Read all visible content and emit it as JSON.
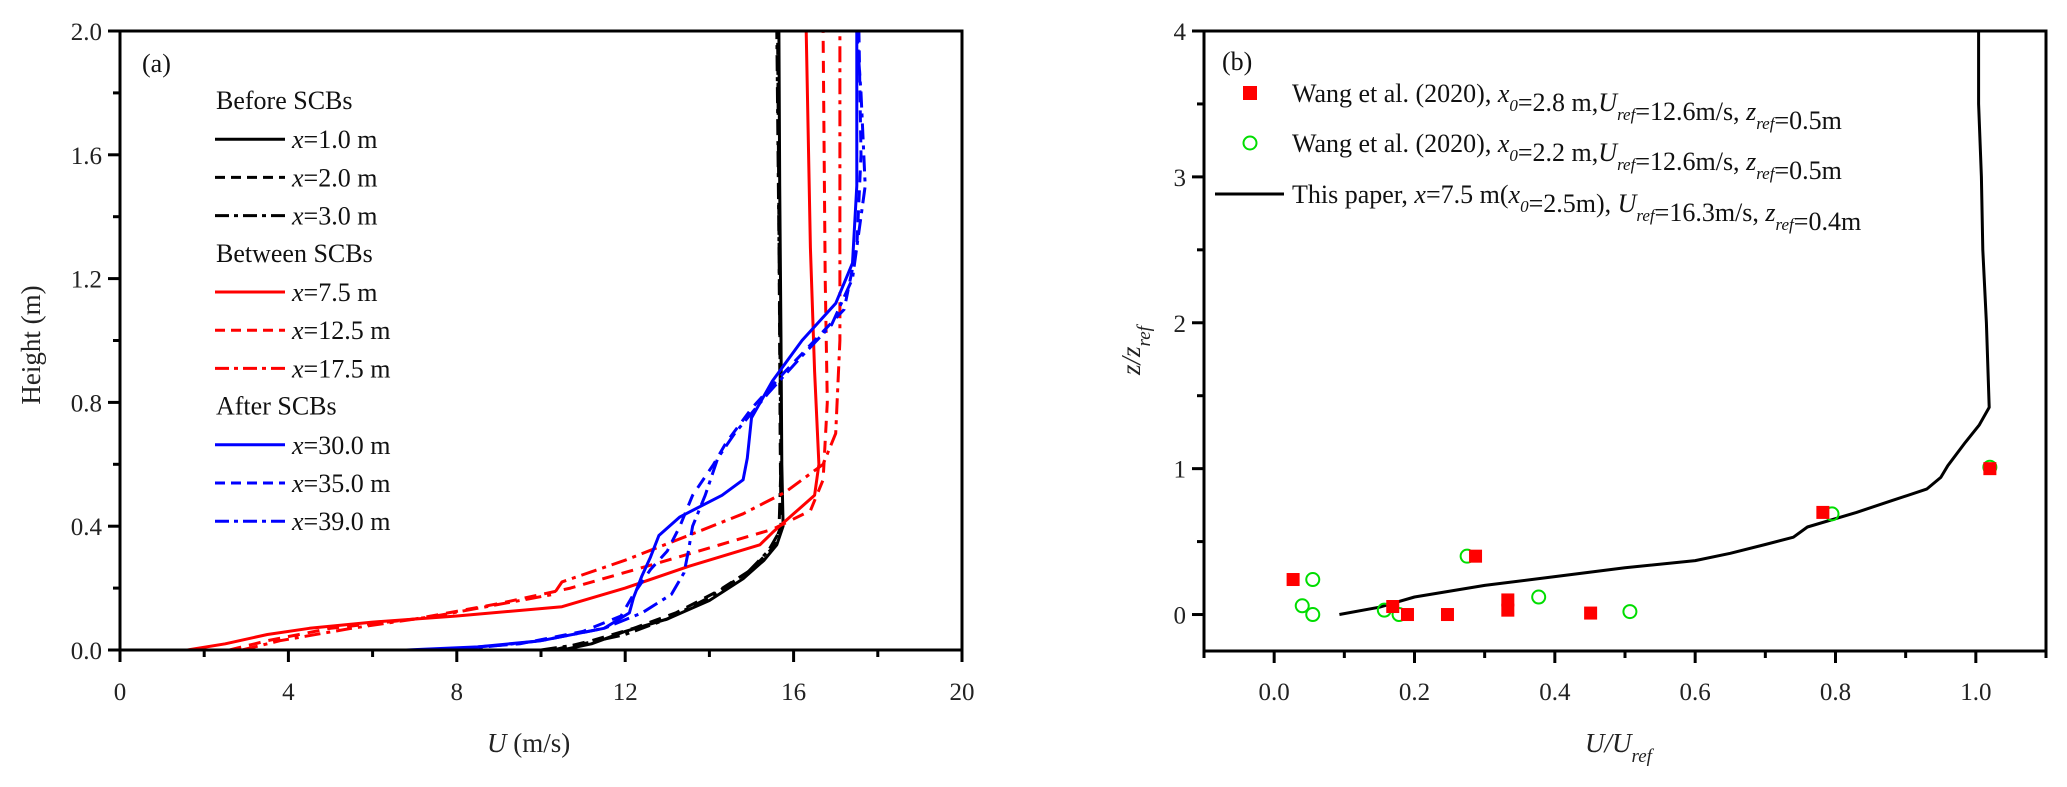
{
  "chart_data": [
    {
      "type": "line",
      "panel_label": "(a)",
      "xlabel_main": "U",
      "xlabel_unit": " (m/s)",
      "ylabel": "Height (m)",
      "xlim": [
        0,
        20
      ],
      "ylim": [
        0,
        2.0
      ],
      "xticks": [
        0,
        4,
        8,
        12,
        16,
        20
      ],
      "xtick_labels": [
        "0",
        "4",
        "8",
        "12",
        "16",
        "20"
      ],
      "yticks": [
        0,
        0.4,
        0.8,
        1.2,
        1.6,
        2.0
      ],
      "ytick_labels": [
        "0.0",
        "0.4",
        "0.8",
        "1.2",
        "1.6",
        "2.0"
      ],
      "grid": false,
      "legend_position": "top-left",
      "legend_groups": [
        {
          "title": "Before SCBs",
          "series": [
            0,
            1,
            2
          ]
        },
        {
          "title": "Between SCBs",
          "series": [
            3,
            4,
            5
          ]
        },
        {
          "title": "After SCBs",
          "series": [
            6,
            7,
            8
          ]
        }
      ],
      "series": [
        {
          "name": "x=1.0 m",
          "var": "x",
          "rest": "=1.0 m",
          "color": "#000000",
          "dash": "solid",
          "points": [
            [
              10.5,
              0
            ],
            [
              11.2,
              0.02
            ],
            [
              12.0,
              0.06
            ],
            [
              13.0,
              0.1
            ],
            [
              14.0,
              0.16
            ],
            [
              14.8,
              0.23
            ],
            [
              15.3,
              0.29
            ],
            [
              15.6,
              0.34
            ],
            [
              15.75,
              0.4
            ],
            [
              15.72,
              0.6
            ],
            [
              15.7,
              1.0
            ],
            [
              15.67,
              1.5
            ],
            [
              15.65,
              2.0
            ]
          ]
        },
        {
          "name": "x=2.0 m",
          "var": "x",
          "rest": "=2.0 m",
          "color": "#000000",
          "dash": "dash",
          "points": [
            [
              10.3,
              0
            ],
            [
              11.2,
              0.03
            ],
            [
              12.2,
              0.07
            ],
            [
              13.2,
              0.12
            ],
            [
              14.2,
              0.19
            ],
            [
              15.0,
              0.26
            ],
            [
              15.5,
              0.33
            ],
            [
              15.7,
              0.4
            ],
            [
              15.68,
              0.7
            ],
            [
              15.66,
              1.2
            ],
            [
              15.62,
              2.0
            ]
          ]
        },
        {
          "name": "x=3.0 m",
          "var": "x",
          "rest": "=3.0 m",
          "color": "#000000",
          "dash": "dashdot",
          "points": [
            [
              10.0,
              0
            ],
            [
              11.0,
              0.02
            ],
            [
              12.0,
              0.05
            ],
            [
              13.0,
              0.1
            ],
            [
              14.0,
              0.17
            ],
            [
              14.9,
              0.25
            ],
            [
              15.4,
              0.32
            ],
            [
              15.65,
              0.38
            ],
            [
              15.7,
              0.6
            ],
            [
              15.66,
              1.2
            ],
            [
              15.6,
              2.0
            ]
          ]
        },
        {
          "name": "x=7.5 m",
          "var": "x",
          "rest": "=7.5 m",
          "color": "#ff0000",
          "dash": "solid",
          "points": [
            [
              1.6,
              0
            ],
            [
              2.5,
              0.02
            ],
            [
              3.5,
              0.05
            ],
            [
              4.5,
              0.07
            ],
            [
              6.0,
              0.09
            ],
            [
              8.0,
              0.11
            ],
            [
              10.5,
              0.14
            ],
            [
              12.0,
              0.2
            ],
            [
              13.5,
              0.27
            ],
            [
              15.2,
              0.34
            ],
            [
              15.5,
              0.38
            ],
            [
              16.0,
              0.44
            ],
            [
              16.5,
              0.5
            ],
            [
              16.6,
              0.6
            ],
            [
              16.5,
              0.9
            ],
            [
              16.4,
              1.3
            ],
            [
              16.3,
              2.0
            ]
          ]
        },
        {
          "name": "x=12.5 m",
          "var": "x",
          "rest": "=12.5 m",
          "color": "#ff0000",
          "dash": "dash",
          "points": [
            [
              2.6,
              0
            ],
            [
              3.5,
              0.03
            ],
            [
              5.0,
              0.07
            ],
            [
              7.0,
              0.1
            ],
            [
              9.0,
              0.15
            ],
            [
              10.7,
              0.2
            ],
            [
              12.5,
              0.27
            ],
            [
              14.0,
              0.33
            ],
            [
              15.5,
              0.39
            ],
            [
              16.4,
              0.45
            ],
            [
              16.7,
              0.55
            ],
            [
              16.8,
              0.8
            ],
            [
              16.75,
              1.2
            ],
            [
              16.7,
              2.0
            ]
          ]
        },
        {
          "name": "x=17.5 m",
          "var": "x",
          "rest": "=17.5 m",
          "color": "#ff0000",
          "dash": "dashdot",
          "points": [
            [
              2.9,
              0
            ],
            [
              3.8,
              0.03
            ],
            [
              5.5,
              0.07
            ],
            [
              7.5,
              0.11
            ],
            [
              9.5,
              0.16
            ],
            [
              10.3,
              0.18
            ],
            [
              10.5,
              0.22
            ],
            [
              12.0,
              0.29
            ],
            [
              13.5,
              0.37
            ],
            [
              14.8,
              0.44
            ],
            [
              15.8,
              0.51
            ],
            [
              16.7,
              0.6
            ],
            [
              17.0,
              0.7
            ],
            [
              17.1,
              1.0
            ],
            [
              17.1,
              1.4
            ],
            [
              17.1,
              2.0
            ]
          ]
        },
        {
          "name": "x=30.0 m",
          "var": "x",
          "rest": "=30.0 m",
          "color": "#0000ff",
          "dash": "solid",
          "points": [
            [
              6.8,
              0
            ],
            [
              8.5,
              0.01
            ],
            [
              10.0,
              0.03
            ],
            [
              11.5,
              0.07
            ],
            [
              12.1,
              0.12
            ],
            [
              12.2,
              0.17
            ],
            [
              12.4,
              0.24
            ],
            [
              12.6,
              0.3
            ],
            [
              12.8,
              0.37
            ],
            [
              13.3,
              0.43
            ],
            [
              14.3,
              0.5
            ],
            [
              14.8,
              0.55
            ],
            [
              14.9,
              0.62
            ],
            [
              15.0,
              0.75
            ],
            [
              15.5,
              0.87
            ],
            [
              16.2,
              1.0
            ],
            [
              17.0,
              1.12
            ],
            [
              17.4,
              1.25
            ],
            [
              17.5,
              1.5
            ],
            [
              17.5,
              2.0
            ]
          ]
        },
        {
          "name": "x=35.0 m",
          "var": "x",
          "rest": "=35.0 m",
          "color": "#0000ff",
          "dash": "dash",
          "points": [
            [
              7.5,
              0
            ],
            [
              9.5,
              0.02
            ],
            [
              11.0,
              0.06
            ],
            [
              11.9,
              0.11
            ],
            [
              12.2,
              0.18
            ],
            [
              12.6,
              0.26
            ],
            [
              13.0,
              0.32
            ],
            [
              13.3,
              0.4
            ],
            [
              13.6,
              0.5
            ],
            [
              14.1,
              0.6
            ],
            [
              14.4,
              0.67
            ],
            [
              15.0,
              0.78
            ],
            [
              15.8,
              0.9
            ],
            [
              16.5,
              1.0
            ],
            [
              17.2,
              1.1
            ],
            [
              17.5,
              1.3
            ],
            [
              17.6,
              1.6
            ],
            [
              17.55,
              2.0
            ]
          ]
        },
        {
          "name": "x=39.0 m",
          "var": "x",
          "rest": "=39.0 m",
          "color": "#0000ff",
          "dash": "dashdot",
          "points": [
            [
              8.0,
              0
            ],
            [
              10.0,
              0.03
            ],
            [
              11.5,
              0.07
            ],
            [
              12.4,
              0.12
            ],
            [
              13.1,
              0.18
            ],
            [
              13.4,
              0.25
            ],
            [
              13.5,
              0.32
            ],
            [
              13.6,
              0.4
            ],
            [
              13.9,
              0.5
            ],
            [
              14.2,
              0.62
            ],
            [
              14.6,
              0.7
            ],
            [
              15.4,
              0.83
            ],
            [
              16.2,
              0.95
            ],
            [
              16.9,
              1.05
            ],
            [
              17.4,
              1.2
            ],
            [
              17.7,
              1.5
            ],
            [
              17.6,
              1.8
            ],
            [
              17.5,
              2.0
            ]
          ]
        }
      ]
    },
    {
      "type": "scatter",
      "panel_label": "(b)",
      "xlabel_main": "U/U",
      "xlabel_sub": "ref",
      "ylabel_main": "z/z",
      "ylabel_sub": "ref",
      "xlim": [
        -0.1,
        1.1
      ],
      "ylim": [
        -0.25,
        4
      ],
      "xticks": [
        0.0,
        0.2,
        0.4,
        0.6,
        0.8,
        1.0
      ],
      "xtick_labels": [
        "0.0",
        "0.2",
        "0.4",
        "0.6",
        "0.8",
        "1.0"
      ],
      "yticks": [
        0,
        1,
        2,
        3,
        4
      ],
      "ytick_labels": [
        "0",
        "1",
        "2",
        "3",
        "4"
      ],
      "grid": false,
      "legend_position": "top-left",
      "series": [
        {
          "name": "Wang et al. (2020), x0=2.8 m, Uref=12.6m/s, zref=0.5m",
          "legend_parts": [
            "Wang et al. (2020), ",
            "x",
            "0",
            "=2.8 m,",
            "U",
            "ref",
            "=12.6m/s, ",
            "z",
            "ref",
            "=0.5m"
          ],
          "marker": "filled-square",
          "color": "#ff0000",
          "points": [
            [
              0.027,
              0.24
            ],
            [
              0.169,
              0.055
            ],
            [
              0.19,
              0.0
            ],
            [
              0.247,
              0.0
            ],
            [
              0.333,
              0.1
            ],
            [
              0.333,
              0.03
            ],
            [
              0.287,
              0.4
            ],
            [
              0.451,
              0.01
            ],
            [
              0.782,
              0.7
            ],
            [
              1.02,
              1.0
            ]
          ]
        },
        {
          "name": "Wang et al. (2020), x0=2.2 m, Uref=12.6m/s, zref=0.5m",
          "legend_parts": [
            "Wang et al. (2020), ",
            "x",
            "0",
            "=2.2 m,",
            "U",
            "ref",
            "=12.6m/s, ",
            "z",
            "ref",
            "=0.5m"
          ],
          "marker": "open-circle",
          "color": "#00dd00",
          "points": [
            [
              0.055,
              0.24
            ],
            [
              0.04,
              0.06
            ],
            [
              0.055,
              0.0
            ],
            [
              0.157,
              0.03
            ],
            [
              0.178,
              0.0
            ],
            [
              0.275,
              0.4
            ],
            [
              0.377,
              0.12
            ],
            [
              0.507,
              0.02
            ],
            [
              0.795,
              0.69
            ],
            [
              1.02,
              1.01
            ]
          ]
        },
        {
          "name": "This paper, x=7.5 m(x0=2.5m), Uref=16.3m/s, zref=0.4m",
          "legend_parts": [
            "This paper, ",
            "x",
            "=7.5 m(",
            "x",
            "0",
            "=2.5m),  ",
            "U",
            "ref",
            "=16.3m/s, ",
            "z",
            "ref",
            "=0.4m"
          ],
          "marker": "line",
          "color": "#000000",
          "points": [
            [
              0.093,
              0.0
            ],
            [
              0.15,
              0.05
            ],
            [
              0.2,
              0.12
            ],
            [
              0.3,
              0.2
            ],
            [
              0.4,
              0.26
            ],
            [
              0.5,
              0.32
            ],
            [
              0.6,
              0.37
            ],
            [
              0.65,
              0.42
            ],
            [
              0.7,
              0.48
            ],
            [
              0.74,
              0.53
            ],
            [
              0.76,
              0.6
            ],
            [
              0.83,
              0.7
            ],
            [
              0.88,
              0.78
            ],
            [
              0.93,
              0.86
            ],
            [
              0.95,
              0.94
            ],
            [
              0.96,
              1.02
            ],
            [
              0.985,
              1.18
            ],
            [
              1.005,
              1.3
            ],
            [
              1.019,
              1.42
            ],
            [
              1.015,
              2.0
            ],
            [
              1.01,
              2.5
            ],
            [
              1.008,
              3.0
            ],
            [
              1.004,
              3.5
            ],
            [
              1.004,
              4.0
            ]
          ]
        }
      ]
    }
  ]
}
